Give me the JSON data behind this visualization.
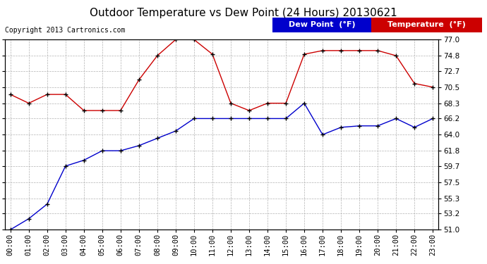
{
  "title": "Outdoor Temperature vs Dew Point (24 Hours) 20130621",
  "copyright": "Copyright 2013 Cartronics.com",
  "background_color": "#ffffff",
  "plot_bg_color": "#ffffff",
  "grid_color": "#aaaaaa",
  "hours": [
    "00:00",
    "01:00",
    "02:00",
    "03:00",
    "04:00",
    "05:00",
    "06:00",
    "07:00",
    "08:00",
    "09:00",
    "10:00",
    "11:00",
    "12:00",
    "13:00",
    "14:00",
    "15:00",
    "16:00",
    "17:00",
    "18:00",
    "19:00",
    "20:00",
    "21:00",
    "22:00",
    "23:00"
  ],
  "temperature": [
    69.5,
    68.3,
    69.5,
    69.5,
    67.3,
    67.3,
    67.3,
    71.5,
    74.8,
    77.0,
    77.0,
    75.0,
    68.3,
    67.3,
    68.3,
    68.3,
    75.0,
    75.5,
    75.5,
    75.5,
    75.5,
    74.8,
    71.0,
    70.5
  ],
  "dew_point": [
    51.0,
    52.5,
    54.5,
    59.7,
    60.5,
    61.8,
    61.8,
    62.5,
    63.5,
    64.5,
    66.2,
    66.2,
    66.2,
    66.2,
    66.2,
    66.2,
    68.3,
    64.0,
    65.0,
    65.2,
    65.2,
    66.2,
    65.0,
    66.2
  ],
  "temp_color": "#cc0000",
  "dew_color": "#0000cc",
  "marker": "+",
  "marker_color": "#000000",
  "ylim_min": 51.0,
  "ylim_max": 77.0,
  "yticks": [
    51.0,
    53.2,
    55.3,
    57.5,
    59.7,
    61.8,
    64.0,
    66.2,
    68.3,
    70.5,
    72.7,
    74.8,
    77.0
  ],
  "legend_dew_bg": "#0000cc",
  "legend_temp_bg": "#cc0000",
  "legend_text_color": "#ffffff",
  "title_fontsize": 11,
  "tick_fontsize": 7.5,
  "copyright_fontsize": 7,
  "legend_fontsize": 8
}
